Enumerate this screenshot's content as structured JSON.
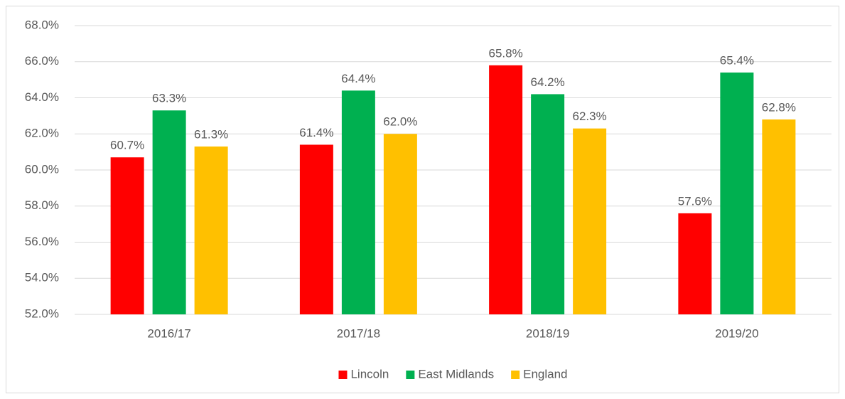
{
  "chart_data": {
    "type": "bar",
    "categories": [
      "2016/17",
      "2017/18",
      "2018/19",
      "2019/20"
    ],
    "series": [
      {
        "name": "Lincoln",
        "color": "#ff0000",
        "values": [
          60.7,
          61.4,
          65.8,
          57.6
        ],
        "value_labels": [
          "60.7%",
          "61.4%",
          "65.8%",
          "57.6%"
        ]
      },
      {
        "name": "East Midlands",
        "color": "#00b050",
        "values": [
          63.3,
          64.4,
          64.2,
          65.4
        ],
        "value_labels": [
          "63.3%",
          "64.4%",
          "64.2%",
          "65.4%"
        ]
      },
      {
        "name": "England",
        "color": "#ffc000",
        "values": [
          61.3,
          62.0,
          62.3,
          62.8
        ],
        "value_labels": [
          "61.3%",
          "62.0%",
          "62.3%",
          "62.8%"
        ]
      }
    ],
    "ylim": [
      52,
      68
    ],
    "yticks": [
      {
        "value": 52,
        "label": "52.0%"
      },
      {
        "value": 54,
        "label": "54.0%"
      },
      {
        "value": 56,
        "label": "56.0%"
      },
      {
        "value": 58,
        "label": "58.0%"
      },
      {
        "value": 60,
        "label": "60.0%"
      },
      {
        "value": 62,
        "label": "62.0%"
      },
      {
        "value": 64,
        "label": "64.0%"
      },
      {
        "value": 66,
        "label": "66.0%"
      },
      {
        "value": 68,
        "label": "68.0%"
      }
    ],
    "grid": true,
    "legend": "bottom"
  }
}
